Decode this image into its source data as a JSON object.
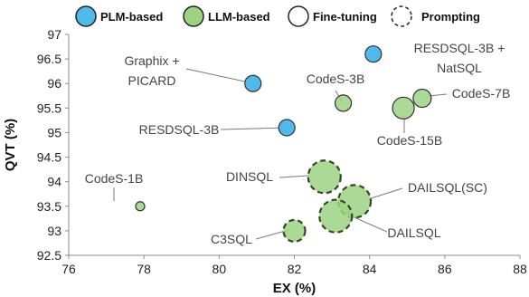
{
  "chart_data": {
    "type": "scatter",
    "xlabel": "EX (%)",
    "ylabel": "QVT (%)",
    "xlim": [
      76,
      88
    ],
    "ylim": [
      92.5,
      97
    ],
    "xticks": [
      "76",
      "78",
      "80",
      "82",
      "84",
      "86",
      "88"
    ],
    "yticks": [
      "92.5",
      "93",
      "93.5",
      "94",
      "94.5",
      "95",
      "95.5",
      "96",
      "96.5",
      "97"
    ],
    "grid": false,
    "legend": {
      "position": "top",
      "items": [
        {
          "label": "PLM-based",
          "color": "#4fb9ec",
          "dashed": false
        },
        {
          "label": "LLM-based",
          "color": "#9dd283",
          "dashed": false
        },
        {
          "label": "Fine-tuning",
          "color": "#ffffff",
          "dashed": false
        },
        {
          "label": "Prompting",
          "color": "#ffffff",
          "dashed": true
        }
      ]
    },
    "colors": {
      "plm": "#4fb9ec",
      "llm": "#9dd283"
    },
    "points": [
      {
        "label": "RESDSQL-3B + NatSQL",
        "lines": [
          "RESDSQL-3B +",
          "NatSQL"
        ],
        "x": 84.1,
        "y": 96.6,
        "category": "plm",
        "method": "fine-tuning",
        "size": "medium"
      },
      {
        "label": "Graphix + PICARD",
        "lines": [
          "Graphix +",
          "PICARD"
        ],
        "x": 80.9,
        "y": 96.0,
        "category": "plm",
        "method": "fine-tuning",
        "size": "medium"
      },
      {
        "label": "RESDSQL-3B",
        "lines": [
          "RESDSQL-3B"
        ],
        "x": 81.8,
        "y": 95.1,
        "category": "plm",
        "method": "fine-tuning",
        "size": "medium"
      },
      {
        "label": "CodeS-3B",
        "lines": [
          "CodeS-3B"
        ],
        "x": 83.3,
        "y": 95.6,
        "category": "llm",
        "method": "fine-tuning",
        "size": "medium"
      },
      {
        "label": "CodeS-7B",
        "lines": [
          "CodeS-7B"
        ],
        "x": 85.4,
        "y": 95.7,
        "category": "llm",
        "method": "fine-tuning",
        "size": "medium-large"
      },
      {
        "label": "CodeS-15B",
        "lines": [
          "CodeS-15B"
        ],
        "x": 84.9,
        "y": 95.5,
        "category": "llm",
        "method": "fine-tuning",
        "size": "large"
      },
      {
        "label": "CodeS-1B",
        "lines": [
          "CodeS-1B"
        ],
        "x": 77.9,
        "y": 93.5,
        "category": "llm",
        "method": "fine-tuning",
        "size": "small"
      },
      {
        "label": "DINSQL",
        "lines": [
          "DINSQL"
        ],
        "x": 82.8,
        "y": 94.1,
        "category": "llm",
        "method": "prompting",
        "size": "huge"
      },
      {
        "label": "DAILSQL(SC)",
        "lines": [
          "DAILSQL(SC)"
        ],
        "x": 83.6,
        "y": 93.6,
        "category": "llm",
        "method": "prompting",
        "size": "huge"
      },
      {
        "label": "DAILSQL",
        "lines": [
          "DAILSQL"
        ],
        "x": 83.1,
        "y": 93.3,
        "category": "llm",
        "method": "prompting",
        "size": "huge"
      },
      {
        "label": "C3SQL",
        "lines": [
          "C3SQL"
        ],
        "x": 82.0,
        "y": 93.0,
        "category": "llm",
        "method": "prompting",
        "size": "large"
      }
    ]
  }
}
